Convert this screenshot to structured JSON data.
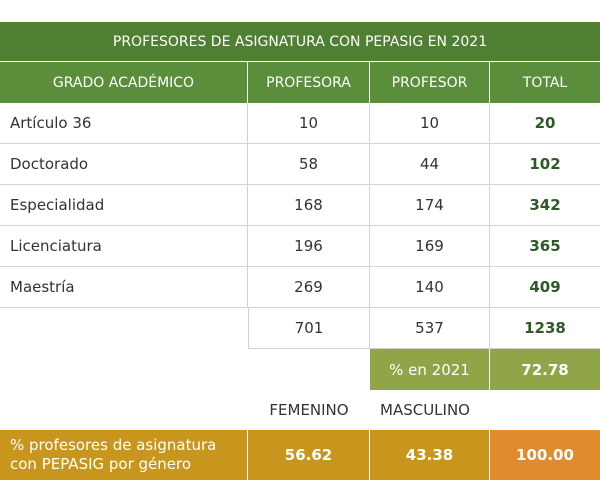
{
  "title": "PROFESORES DE ASIGNATURA CON PEPASIG EN 2021",
  "header": [
    "GRADO ACADÉMICO",
    "PROFESORA",
    "PROFESOR",
    "TOTAL"
  ],
  "rows": [
    [
      "Artículo 36",
      10,
      10,
      20
    ],
    [
      "Doctorado",
      58,
      44,
      102
    ],
    [
      "Especialidad",
      168,
      174,
      342
    ],
    [
      "Licenciatura",
      196,
      169,
      365
    ],
    [
      "Maestría",
      269,
      140,
      409
    ]
  ],
  "totals": [
    701,
    537,
    1238
  ],
  "percent_2021": {
    "label": "% en 2021",
    "value": 72.78
  },
  "gender_labels": [
    "FEMENINO",
    "MASCULINO"
  ],
  "gender_percent": {
    "label_lines": [
      "% profesores de asignatura",
      "con PEPASIG por género"
    ],
    "values": [
      56.62,
      43.38,
      "100.00"
    ]
  }
}
